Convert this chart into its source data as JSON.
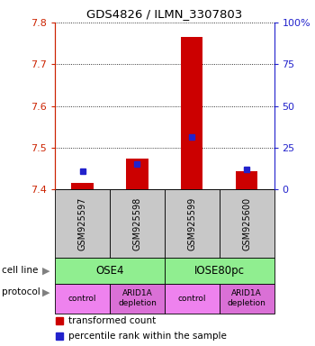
{
  "title": "GDS4826 / ILMN_3307803",
  "samples": [
    "GSM925597",
    "GSM925598",
    "GSM925599",
    "GSM925600"
  ],
  "transformed_counts": [
    7.415,
    7.475,
    7.765,
    7.445
  ],
  "baseline": 7.4,
  "percentile_values": [
    7.445,
    7.462,
    7.527,
    7.448
  ],
  "ylim": [
    7.4,
    7.8
  ],
  "yticks_left": [
    7.4,
    7.5,
    7.6,
    7.7,
    7.8
  ],
  "yticks_right_vals": [
    0,
    25,
    50,
    75,
    100
  ],
  "yticks_right_pos": [
    7.4,
    7.5,
    7.6,
    7.7,
    7.8
  ],
  "cell_line_labels": [
    "OSE4",
    "IOSE80pc"
  ],
  "cell_line_spans": [
    [
      0,
      1
    ],
    [
      2,
      3
    ]
  ],
  "cell_line_color": "#90EE90",
  "protocol_labels": [
    "control",
    "ARID1A\ndepletion",
    "control",
    "ARID1A\ndepletion"
  ],
  "protocol_colors": [
    "#EE82EE",
    "#DA70D6",
    "#EE82EE",
    "#DA70D6"
  ],
  "sample_bg_color": "#C8C8C8",
  "bar_color": "#CC0000",
  "dot_color": "#2222CC",
  "legend_bar_label": "transformed count",
  "legend_dot_label": "percentile rank within the sample",
  "left_axis_color": "#CC2200",
  "right_axis_color": "#2222CC",
  "bar_width": 0.4
}
